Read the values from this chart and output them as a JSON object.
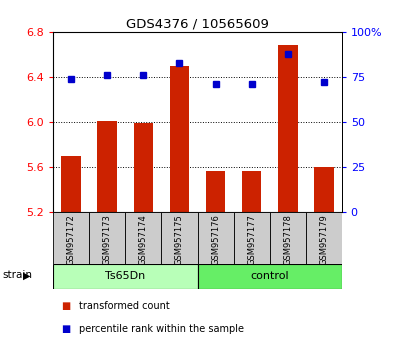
{
  "title": "GDS4376 / 10565609",
  "samples": [
    "GSM957172",
    "GSM957173",
    "GSM957174",
    "GSM957175",
    "GSM957176",
    "GSM957177",
    "GSM957178",
    "GSM957179"
  ],
  "red_values": [
    5.7,
    6.01,
    5.99,
    6.5,
    5.57,
    5.57,
    6.68,
    5.6
  ],
  "blue_percentiles": [
    74,
    76,
    76,
    83,
    71,
    71,
    88,
    72
  ],
  "ylim_left": [
    5.2,
    6.8
  ],
  "ylim_right": [
    0,
    100
  ],
  "yticks_left": [
    5.2,
    5.6,
    6.0,
    6.4,
    6.8
  ],
  "yticks_right": [
    0,
    25,
    50,
    75,
    100
  ],
  "ytick_labels_right": [
    "0",
    "25",
    "50",
    "75",
    "100%"
  ],
  "bar_color": "#cc2200",
  "dot_color": "#0000cc",
  "bar_width": 0.55,
  "ts65dn_color": "#b8ffb8",
  "control_color": "#66ee66",
  "sample_box_color": "#cccccc",
  "legend_items": [
    {
      "label": "transformed count",
      "color": "#cc2200"
    },
    {
      "label": "percentile rank within the sample",
      "color": "#0000cc"
    }
  ]
}
